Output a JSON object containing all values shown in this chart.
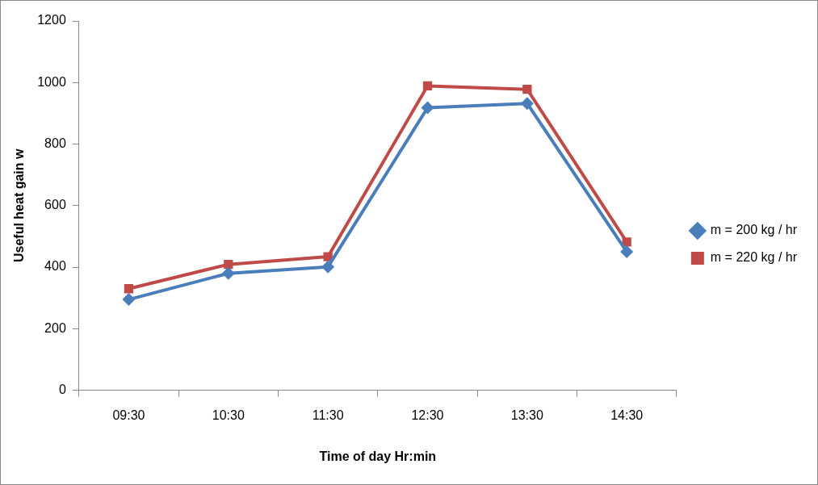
{
  "chart_data": {
    "type": "line",
    "xlabel": "Time of day Hr:min",
    "ylabel": "Useful heat gain w",
    "categories": [
      "09:30",
      "10:30",
      "11:30",
      "12:30",
      "13:30",
      "14:30"
    ],
    "series": [
      {
        "name": "m = 200 kg / hr",
        "color": "#4a7ebb",
        "marker": "diamond",
        "values": [
          295,
          380,
          401,
          918,
          932,
          450
        ]
      },
      {
        "name": "m = 220 kg / hr",
        "color": "#be4b48",
        "marker": "square",
        "values": [
          330,
          409,
          434,
          989,
          978,
          482
        ]
      }
    ],
    "ylim": [
      0,
      1200
    ],
    "yticks": [
      0,
      200,
      400,
      600,
      800,
      1000,
      1200
    ],
    "grid": false,
    "legend": "right",
    "line_style": "solid"
  }
}
